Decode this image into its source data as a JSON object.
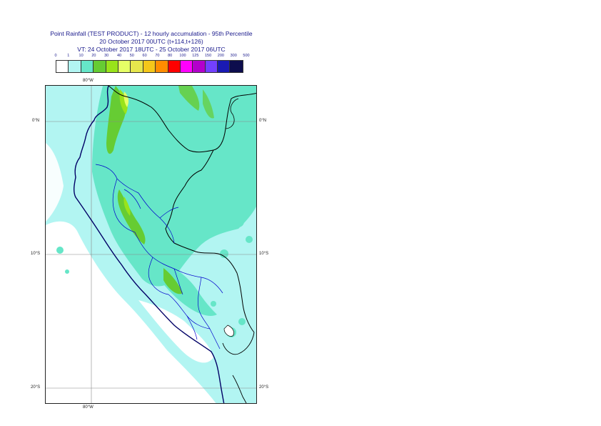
{
  "header": {
    "title": "Point Rainfall (TEST PRODUCT) - 12 hourly accumulation - 95th Percentile",
    "base_time": "20 October 2017 00UTC (t+114,t+126)",
    "valid_time": "VT: 24 October 2017 18UTC - 25 October 2017 06UTC"
  },
  "legend": {
    "thresholds": [
      "0",
      "1",
      "10",
      "20",
      "30",
      "40",
      "50",
      "60",
      "70",
      "80",
      "100",
      "125",
      "150",
      "200",
      "300",
      "500"
    ],
    "colors": [
      "#ffffff",
      "#b2f5f2",
      "#66e6c8",
      "#66cc33",
      "#99e31a",
      "#e6ff66",
      "#e6e64d",
      "#f5c71a",
      "#ff8c00",
      "#ff0000",
      "#ff00ff",
      "#b300cc",
      "#7340ff",
      "#1a1ab3",
      "#0d0d4d"
    ]
  },
  "map": {
    "lon_labels_top": [
      "80°W"
    ],
    "lon_labels_bottom": [
      "80°W"
    ],
    "lat_labels_left": [
      "0°N",
      "10°S",
      "20°S"
    ],
    "lat_labels_right": [
      "0°N",
      "10°S",
      "20°S"
    ],
    "colors": {
      "light": "#b2f5f2",
      "mid": "#66e6c8",
      "green": "#66cc33",
      "yellowgreen": "#99e31a",
      "yellow": "#e6ff66",
      "coast": "#000066",
      "border": "#000000",
      "region": "#0000cc",
      "grid": "#888888"
    }
  }
}
